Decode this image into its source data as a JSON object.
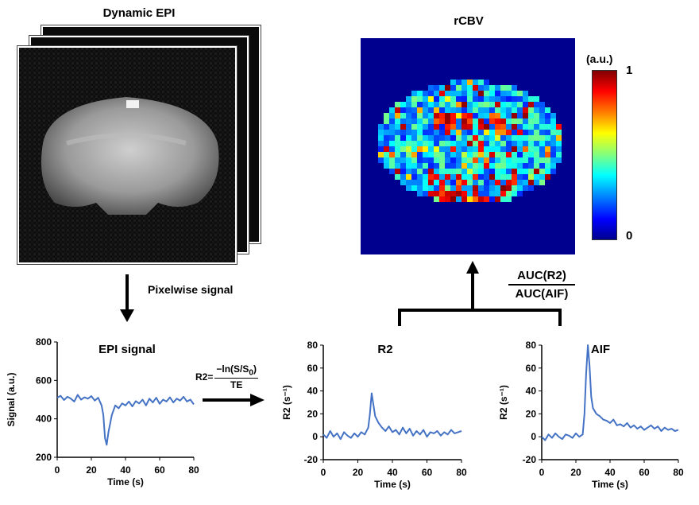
{
  "dynamic_epi": {
    "title": "Dynamic EPI"
  },
  "rcbv": {
    "title": "rCBV",
    "colorbar_unit": "(a.u.)",
    "colorbar_max": "1",
    "colorbar_min": "0"
  },
  "flow": {
    "pixelwise_label": "Pixelwise signal",
    "ratio_numerator": "AUC(R2)",
    "ratio_denominator": "AUC(AIF)"
  },
  "formula": {
    "lhs": "R2=",
    "numerator_prefix": "−ln(",
    "numerator_s": "S",
    "numerator_slash": "/",
    "numerator_s0": "S",
    "numerator_sub": "0",
    "numerator_suffix": ")",
    "denominator": "TE"
  },
  "colors": {
    "line": "#4472c4",
    "colormap_low": "#00008f",
    "colormap_high": "#800000"
  },
  "chart_data": [
    {
      "type": "line",
      "title": "EPI signal",
      "xlabel": "Time (s)",
      "ylabel": "Signal  (a.u.)",
      "xlim": [
        0,
        80
      ],
      "ylim": [
        200,
        800
      ],
      "xticks": [
        "0",
        "20",
        "40",
        "60",
        "80"
      ],
      "yticks": [
        "200",
        "400",
        "600",
        "800"
      ],
      "series": [
        {
          "name": "EPI signal",
          "x": [
            0,
            2,
            4,
            6,
            8,
            10,
            12,
            14,
            16,
            18,
            20,
            22,
            24,
            26,
            27,
            28,
            29,
            30,
            32,
            34,
            36,
            38,
            40,
            42,
            44,
            46,
            48,
            50,
            52,
            54,
            56,
            58,
            60,
            62,
            64,
            66,
            68,
            70,
            72,
            74,
            76,
            78,
            80
          ],
          "values": [
            510,
            520,
            498,
            515,
            505,
            490,
            525,
            500,
            512,
            505,
            518,
            495,
            510,
            470,
            420,
            300,
            265,
            330,
            420,
            470,
            455,
            480,
            470,
            490,
            465,
            492,
            480,
            500,
            470,
            505,
            485,
            510,
            478,
            500,
            490,
            512,
            485,
            505,
            495,
            515,
            490,
            500,
            475
          ]
        }
      ]
    },
    {
      "type": "line",
      "title": "R2",
      "xlabel": "Time (s)",
      "ylabel": "R2  (s⁻¹)",
      "xlim": [
        0,
        80
      ],
      "ylim": [
        -20,
        80
      ],
      "xticks": [
        "0",
        "20",
        "40",
        "60",
        "80"
      ],
      "yticks": [
        "-20",
        "0",
        "20",
        "40",
        "60",
        "80"
      ],
      "series": [
        {
          "name": "R2",
          "x": [
            0,
            2,
            4,
            6,
            8,
            10,
            12,
            14,
            16,
            18,
            20,
            22,
            24,
            26,
            27,
            28,
            29,
            30,
            32,
            34,
            36,
            38,
            40,
            42,
            44,
            46,
            48,
            50,
            52,
            54,
            56,
            58,
            60,
            62,
            64,
            66,
            68,
            70,
            72,
            74,
            76,
            78,
            80
          ],
          "values": [
            2,
            -1,
            5,
            0,
            3,
            -2,
            4,
            1,
            -1,
            3,
            0,
            4,
            2,
            8,
            20,
            38,
            28,
            18,
            12,
            8,
            5,
            9,
            4,
            6,
            2,
            8,
            3,
            7,
            1,
            5,
            2,
            6,
            0,
            4,
            3,
            5,
            1,
            4,
            2,
            6,
            3,
            4,
            5
          ]
        }
      ]
    },
    {
      "type": "line",
      "title": "AIF",
      "xlabel": "Time (s)",
      "ylabel": "R2  (s⁻¹)",
      "xlim": [
        0,
        80
      ],
      "ylim": [
        -20,
        80
      ],
      "xticks": [
        "0",
        "20",
        "40",
        "60",
        "80"
      ],
      "yticks": [
        "-20",
        "0",
        "20",
        "40",
        "60",
        "80"
      ],
      "series": [
        {
          "name": "AIF",
          "x": [
            0,
            2,
            4,
            6,
            8,
            10,
            12,
            14,
            16,
            18,
            20,
            22,
            24,
            25,
            26,
            27,
            28,
            29,
            30,
            32,
            34,
            36,
            38,
            40,
            42,
            44,
            46,
            48,
            50,
            52,
            54,
            56,
            58,
            60,
            62,
            64,
            66,
            68,
            70,
            72,
            74,
            76,
            78,
            80
          ],
          "values": [
            0,
            -3,
            2,
            -1,
            3,
            0,
            -2,
            2,
            1,
            -1,
            3,
            0,
            2,
            20,
            55,
            80,
            62,
            35,
            25,
            20,
            18,
            15,
            14,
            12,
            15,
            10,
            11,
            9,
            12,
            8,
            10,
            7,
            9,
            6,
            8,
            10,
            7,
            9,
            5,
            8,
            6,
            7,
            5,
            6
          ]
        }
      ]
    }
  ]
}
